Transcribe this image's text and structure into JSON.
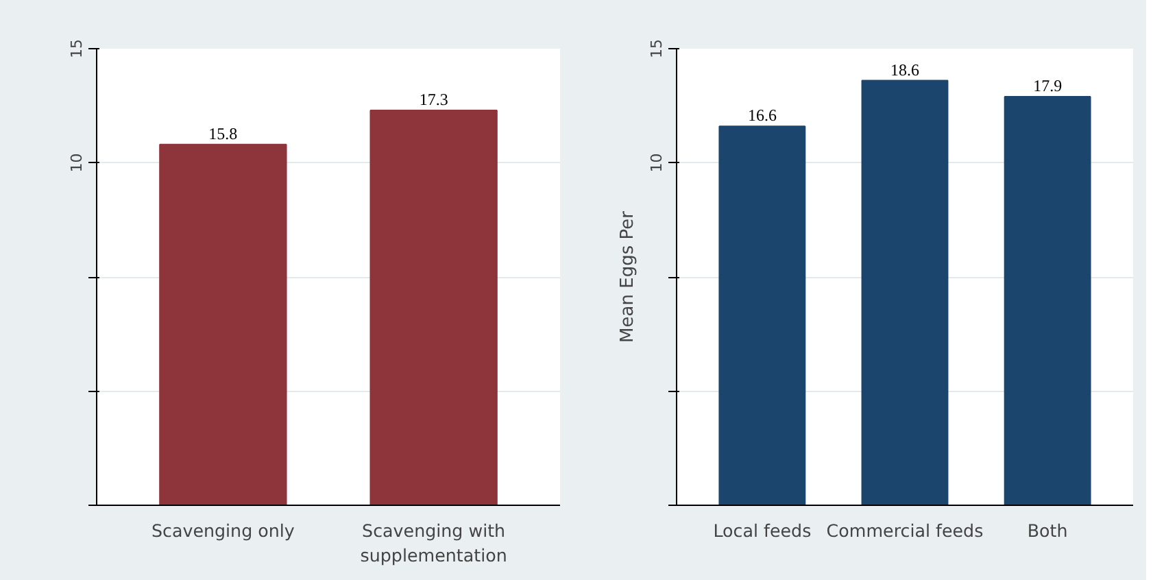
{
  "chart_data": [
    {
      "type": "bar",
      "categories": [
        "Scavenging only",
        "Scavenging with supplementation"
      ],
      "values": [
        15.8,
        17.3
      ],
      "base": [
        -5,
        -5
      ],
      "color": "#8e353b",
      "data_labels": true,
      "ylim": [
        -5,
        15
      ],
      "yticks": [
        15,
        10,
        {
          "value": 5,
          "label": null
        },
        {
          "value": 0,
          "label": null
        },
        {
          "value": -5,
          "label": null
        }
      ],
      "grid": "y"
    },
    {
      "type": "bar",
      "categories": [
        "Local feeds",
        "Commercial feeds",
        "Both"
      ],
      "values": [
        16.6,
        18.6,
        17.9
      ],
      "base": [
        -5,
        -5,
        -5
      ],
      "color": "#1c456d",
      "data_labels": true,
      "ylabel": "Mean Eggs Per",
      "ylim": [
        -5,
        15
      ],
      "yticks": [
        15,
        10,
        {
          "value": 5,
          "label": null
        },
        {
          "value": 0,
          "label": null
        },
        {
          "value": -5,
          "label": null
        }
      ],
      "grid": "y"
    }
  ]
}
